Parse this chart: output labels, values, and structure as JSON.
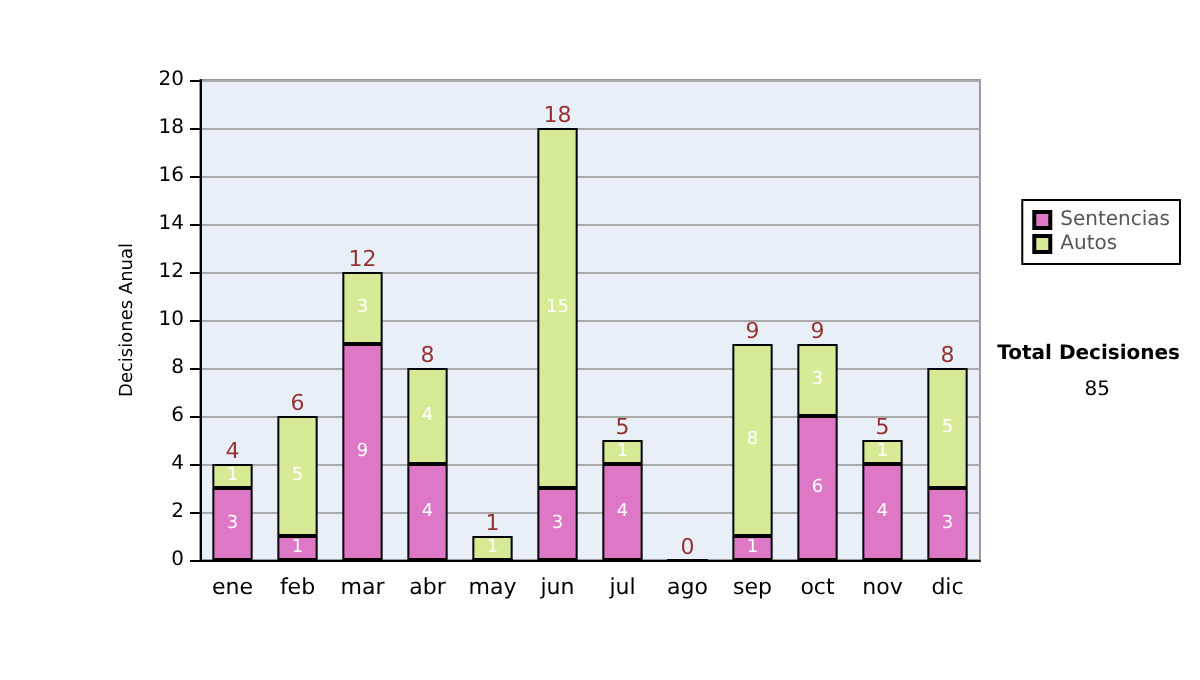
{
  "chart_data": {
    "type": "bar",
    "stacked": true,
    "ylabel": "Decisiones Anual",
    "categories": [
      "ene",
      "feb",
      "mar",
      "abr",
      "may",
      "jun",
      "jul",
      "ago",
      "sep",
      "oct",
      "nov",
      "dic"
    ],
    "series": [
      {
        "name": "Sentencias",
        "color": "#dd77c6",
        "values": [
          3,
          1,
          9,
          4,
          0,
          3,
          4,
          0,
          1,
          6,
          4,
          3
        ],
        "value_labels": [
          "3",
          "1",
          "9",
          "4",
          null,
          "3",
          "4",
          null,
          "1",
          "6",
          "4",
          "3"
        ]
      },
      {
        "name": "Autos",
        "color": "#d6eb96",
        "values": [
          1,
          5,
          3,
          4,
          1,
          15,
          1,
          0,
          8,
          3,
          1,
          5
        ],
        "value_labels": [
          "1",
          "5",
          "3",
          "4",
          "1",
          "15",
          "1",
          null,
          "8",
          "3",
          "1",
          "5"
        ]
      }
    ],
    "totals": [
      "4",
      "6",
      "12",
      "8",
      "1",
      "18",
      "5",
      "0",
      "9",
      "9",
      "5",
      "8"
    ],
    "ylim": [
      0,
      20
    ],
    "yticks": [
      0,
      2,
      4,
      6,
      8,
      10,
      12,
      14,
      16,
      18,
      20
    ],
    "grid": "y",
    "legend": "right",
    "annotations": [
      "Total Decisiones",
      "85"
    ]
  }
}
